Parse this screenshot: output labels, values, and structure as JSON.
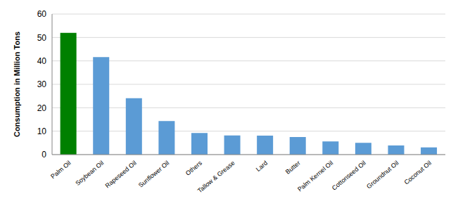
{
  "chart_data": {
    "type": "bar",
    "y_label": "Consumption in Million Tons",
    "categories": [
      "Palm Oil",
      "Soybean Oil",
      "Rapeseed Oil",
      "Sunflower Oil",
      "Others",
      "Tallow & Grease",
      "Lard",
      "Butter",
      "Palm Kernel Oil",
      "Cottonseed Oil",
      "Groundnut Oil",
      "Coconut Oil"
    ],
    "values": [
      52,
      41.6,
      24.1,
      14.3,
      9.2,
      8.2,
      8.1,
      7.5,
      5.6,
      5.0,
      3.9,
      3.1
    ],
    "colors": [
      "#008000",
      "#5b9bd5",
      "#5b9bd5",
      "#5b9bd5",
      "#5b9bd5",
      "#5b9bd5",
      "#5b9bd5",
      "#5b9bd5",
      "#5b9bd5",
      "#5b9bd5",
      "#5b9bd5",
      "#5b9bd5"
    ],
    "ylim": [
      0,
      60
    ],
    "yticks": [
      0,
      10,
      20,
      30,
      40,
      50,
      60
    ],
    "grid": true
  }
}
